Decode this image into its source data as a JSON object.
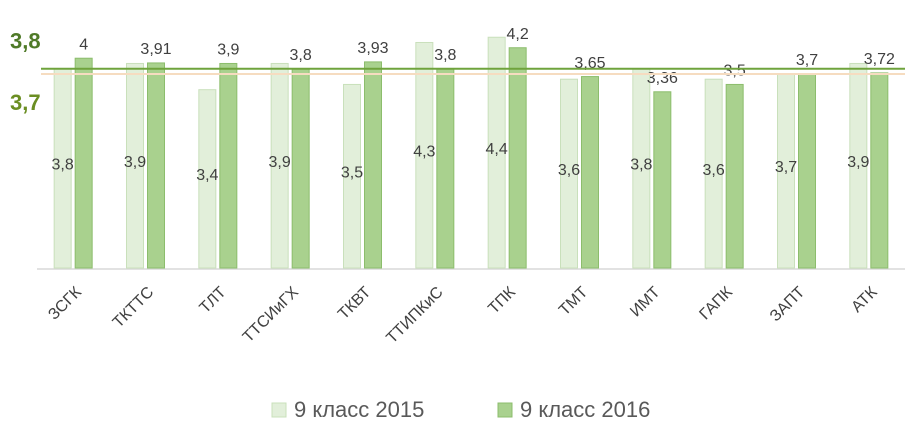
{
  "chart_data": {
    "type": "bar",
    "categories": [
      "ЗСГК",
      "ТКТТС",
      "ТЛТ",
      "ТТСИиГХ",
      "ТКВТ",
      "ТТИПКиС",
      "ТПК",
      "ТМТ",
      "ИМТ",
      "ГАПК",
      "ЗАПТ",
      "АТК"
    ],
    "series": [
      {
        "name": "9 класс 2015",
        "color": "#e2efda",
        "values": [
          3.8,
          3.9,
          3.4,
          3.9,
          3.5,
          4.3,
          4.4,
          3.6,
          3.8,
          3.6,
          3.7,
          3.9
        ],
        "value_labels": [
          "3,8",
          "3,9",
          "3,4",
          "3,9",
          "3,5",
          "4,3",
          "4,4",
          "3,6",
          "3,8",
          "3,6",
          "3,7",
          "3,9"
        ]
      },
      {
        "name": "9 класс 2016",
        "color": "#a9d18e",
        "values": [
          4,
          3.91,
          3.9,
          3.8,
          3.93,
          3.8,
          4.2,
          3.65,
          3.36,
          3.5,
          3.7,
          3.72
        ],
        "value_labels": [
          "4",
          "3,91",
          "3,9",
          "3,8",
          "3,93",
          "3,8",
          "4,2",
          "3,65",
          "3,36",
          "3,5",
          "3,7",
          "3,72"
        ]
      }
    ],
    "ylim": [
      0,
      4.5
    ],
    "reference_lines": [
      {
        "value": {
          "value": 3.8,
          "label": "3,8"
        },
        "color": "#6fa33c"
      },
      {
        "value": {
          "value": 3.7,
          "label": "3,7"
        },
        "color": "#f6dcc0"
      }
    ]
  }
}
